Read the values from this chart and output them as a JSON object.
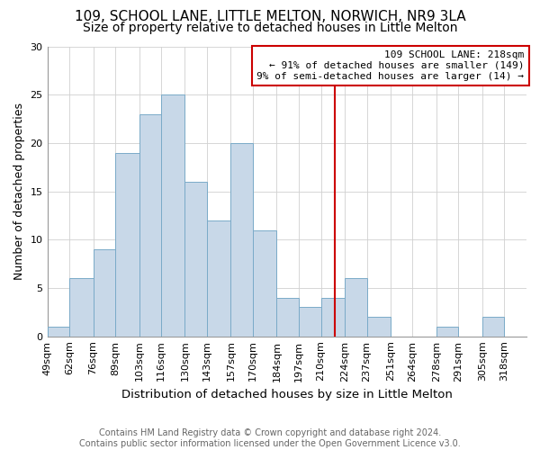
{
  "title": "109, SCHOOL LANE, LITTLE MELTON, NORWICH, NR9 3LA",
  "subtitle": "Size of property relative to detached houses in Little Melton",
  "xlabel": "Distribution of detached houses by size in Little Melton",
  "ylabel": "Number of detached properties",
  "footer_line1": "Contains HM Land Registry data © Crown copyright and database right 2024.",
  "footer_line2": "Contains public sector information licensed under the Open Government Licence v3.0.",
  "bin_labels": [
    "49sqm",
    "62sqm",
    "76sqm",
    "89sqm",
    "103sqm",
    "116sqm",
    "130sqm",
    "143sqm",
    "157sqm",
    "170sqm",
    "184sqm",
    "197sqm",
    "210sqm",
    "224sqm",
    "237sqm",
    "251sqm",
    "264sqm",
    "278sqm",
    "291sqm",
    "305sqm",
    "318sqm"
  ],
  "bin_edges": [
    49,
    62,
    76,
    89,
    103,
    116,
    130,
    143,
    157,
    170,
    184,
    197,
    210,
    224,
    237,
    251,
    264,
    278,
    291,
    305,
    318,
    331
  ],
  "bar_heights": [
    1,
    6,
    9,
    19,
    23,
    25,
    16,
    12,
    20,
    11,
    4,
    3,
    4,
    6,
    2,
    0,
    0,
    1,
    0,
    2,
    0
  ],
  "bar_color": "#c8d8e8",
  "bar_edge_color": "#7aaac8",
  "vline_x": 218,
  "vline_color": "#cc0000",
  "annotation_title": "109 SCHOOL LANE: 218sqm",
  "annotation_line1": "← 91% of detached houses are smaller (149)",
  "annotation_line2": "9% of semi-detached houses are larger (14) →",
  "annotation_box_color": "#ffffff",
  "annotation_box_edge_color": "#cc0000",
  "ylim": [
    0,
    30
  ],
  "yticks": [
    0,
    5,
    10,
    15,
    20,
    25,
    30
  ],
  "title_fontsize": 11,
  "subtitle_fontsize": 10,
  "xlabel_fontsize": 9.5,
  "ylabel_fontsize": 9,
  "tick_fontsize": 8,
  "footer_fontsize": 7,
  "annotation_fontsize": 8
}
